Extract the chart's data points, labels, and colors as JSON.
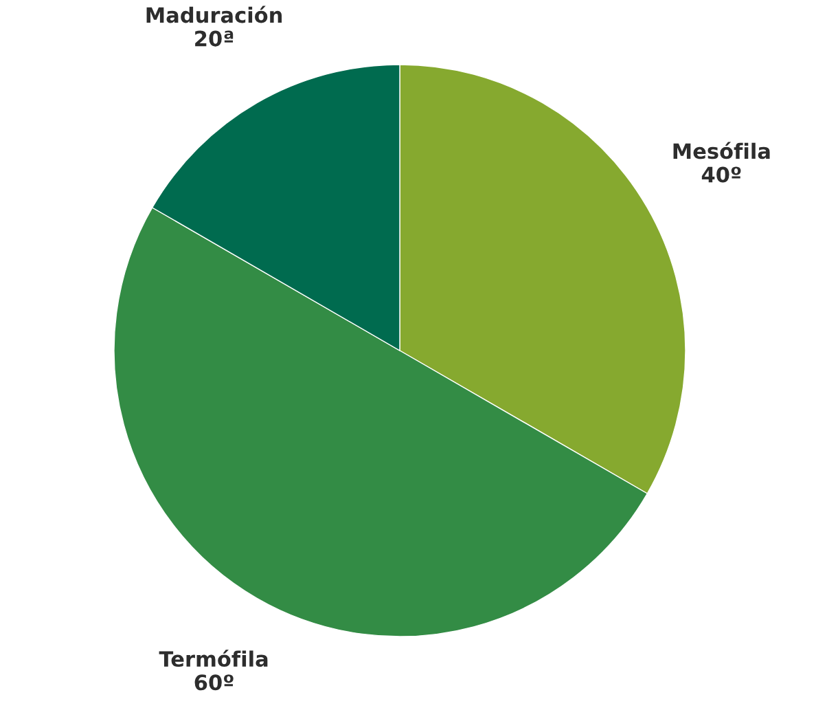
{
  "chart_data": {
    "type": "pie",
    "categories": [
      "Mesófila",
      "Termófila",
      "Maduración"
    ],
    "values": [
      40,
      60,
      20
    ],
    "value_labels": [
      "40º",
      "60º",
      "20ª"
    ],
    "colors": [
      "#86a92f",
      "#338c45",
      "#006b4f"
    ]
  }
}
